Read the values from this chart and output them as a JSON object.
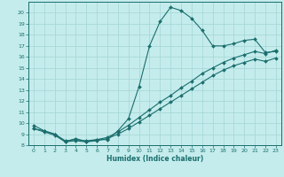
{
  "xlabel": "Humidex (Indice chaleur)",
  "bg_color": "#c5ecec",
  "grid_color": "#a8d8d8",
  "line_color": "#1a6e6e",
  "xlim": [
    -0.5,
    23.5
  ],
  "ylim": [
    8,
    21
  ],
  "xticks": [
    0,
    1,
    2,
    3,
    4,
    5,
    6,
    7,
    8,
    9,
    10,
    11,
    12,
    13,
    14,
    15,
    16,
    17,
    18,
    19,
    20,
    21,
    22,
    23
  ],
  "yticks": [
    8,
    9,
    10,
    11,
    12,
    13,
    14,
    15,
    16,
    17,
    18,
    19,
    20
  ],
  "series1_x": [
    0,
    1,
    2,
    3,
    4,
    5,
    6,
    7,
    8,
    9,
    10,
    11,
    12,
    13,
    14,
    15,
    16,
    17,
    18,
    19,
    20,
    21,
    22,
    23
  ],
  "series1_y": [
    9.8,
    9.3,
    9.0,
    8.3,
    8.6,
    8.3,
    8.5,
    8.5,
    9.3,
    10.4,
    13.3,
    17.0,
    19.2,
    20.5,
    20.2,
    19.5,
    18.4,
    17.0,
    17.0,
    17.2,
    17.5,
    17.6,
    16.4,
    16.5
  ],
  "series2_x": [
    0,
    1,
    2,
    3,
    4,
    5,
    6,
    7,
    8,
    9,
    10,
    11,
    12,
    13,
    14,
    15,
    16,
    17,
    18,
    19,
    20,
    21,
    22,
    23
  ],
  "series2_y": [
    9.5,
    9.3,
    9.0,
    8.4,
    8.5,
    8.4,
    8.5,
    8.7,
    9.2,
    9.8,
    10.5,
    11.2,
    11.9,
    12.5,
    13.2,
    13.8,
    14.5,
    15.0,
    15.5,
    15.9,
    16.2,
    16.5,
    16.3,
    16.6
  ],
  "series3_x": [
    0,
    1,
    2,
    3,
    4,
    5,
    6,
    7,
    8,
    9,
    10,
    11,
    12,
    13,
    14,
    15,
    16,
    17,
    18,
    19,
    20,
    21,
    22,
    23
  ],
  "series3_y": [
    9.5,
    9.2,
    8.9,
    8.3,
    8.4,
    8.3,
    8.4,
    8.6,
    9.0,
    9.5,
    10.1,
    10.7,
    11.3,
    11.9,
    12.5,
    13.1,
    13.7,
    14.3,
    14.8,
    15.2,
    15.5,
    15.8,
    15.6,
    15.9
  ]
}
